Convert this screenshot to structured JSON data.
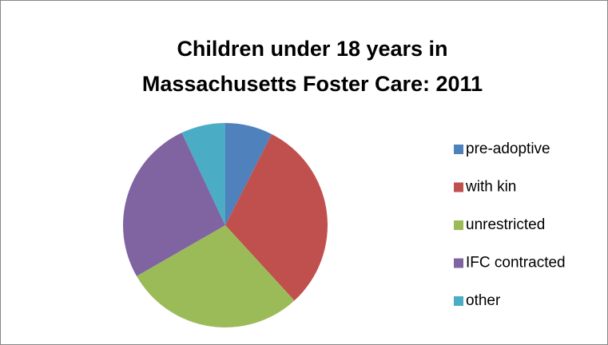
{
  "chart_data": {
    "type": "pie",
    "title": "Children under 18 years in Massachusetts Foster Care: 2011",
    "categories": [
      "pre-adoptive",
      "with kin",
      "unrestricted",
      "IFC contracted",
      "other"
    ],
    "values": [
      7.5,
      30.7,
      28.5,
      26.3,
      7.0
    ],
    "colors": [
      "#4f81bd",
      "#c0504d",
      "#9bbb59",
      "#8064a2",
      "#4bacc6"
    ],
    "legend": "right"
  }
}
